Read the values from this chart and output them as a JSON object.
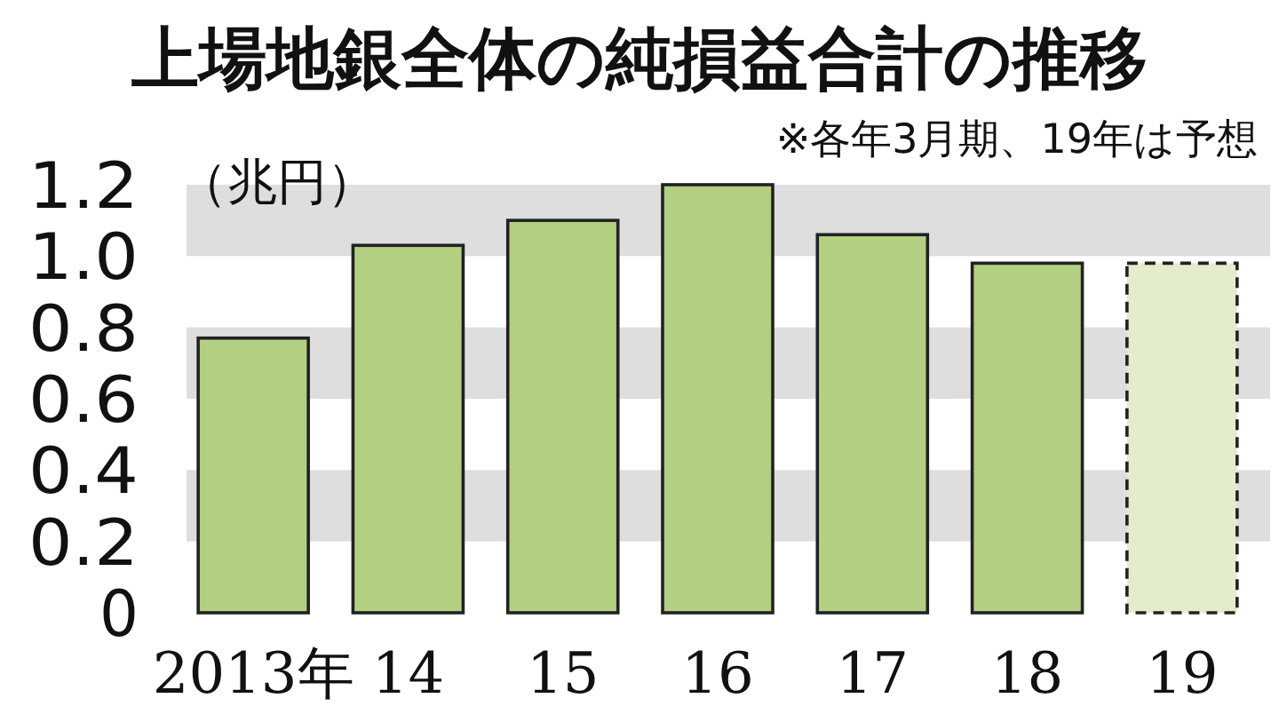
{
  "chart_data": {
    "type": "bar",
    "title": "上場地銀全体の純損益合計の推移",
    "subtitle": "※各年3月期、19年は予想",
    "ylabel": "（兆円）",
    "categories": [
      "2013年",
      "14",
      "15",
      "16",
      "17",
      "18",
      "19"
    ],
    "series": [
      {
        "color": "#b3cf82",
        "values": [
          0.77,
          1.03,
          1.1,
          1.2,
          1.06,
          0.98,
          null
        ]
      },
      {
        "color": "#e3edcc",
        "line_style": "dashed",
        "values": [
          null,
          null,
          null,
          null,
          null,
          null,
          0.98
        ]
      }
    ],
    "ylim": [
      0,
      1.2
    ],
    "yticks": [
      0,
      0.2,
      0.4,
      0.6,
      0.8,
      {
        "value": 1,
        "label": "1.0"
      },
      1.2
    ],
    "bands": [
      {
        "axis": "y",
        "from": 0.2,
        "to": 0.4,
        "color": "#dedede"
      },
      {
        "axis": "y",
        "from": 0.6,
        "to": 0.8,
        "color": "#dedede"
      },
      {
        "axis": "y",
        "from": 1,
        "to": 1.2,
        "color": "#dedede"
      }
    ]
  }
}
